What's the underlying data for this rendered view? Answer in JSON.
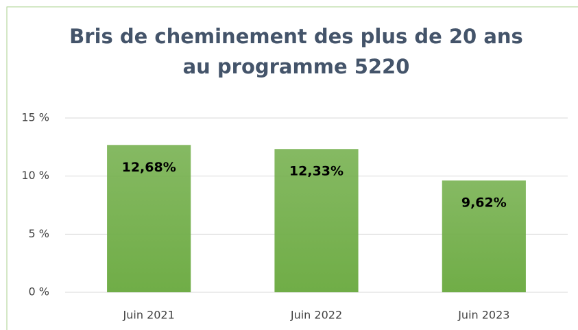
{
  "chart_data": {
    "type": "bar",
    "title": [
      "Bris de cheminement des plus de 20 ans",
      "au programme 5220"
    ],
    "categories": [
      "Juin 2021",
      "Juin 2022",
      "Juin 2023"
    ],
    "values": [
      12.68,
      12.33,
      9.62
    ],
    "value_labels": [
      "12,68%",
      "12,33%",
      "9,62%"
    ],
    "color": "#70ad47",
    "ylim": [
      0,
      15
    ],
    "yticks": [
      {
        "value": 0,
        "label": "0 %"
      },
      {
        "value": 5,
        "label": "5 %"
      },
      {
        "value": 10,
        "label": "10 %"
      },
      {
        "value": 15,
        "label": "15 %"
      }
    ],
    "grid": true
  }
}
